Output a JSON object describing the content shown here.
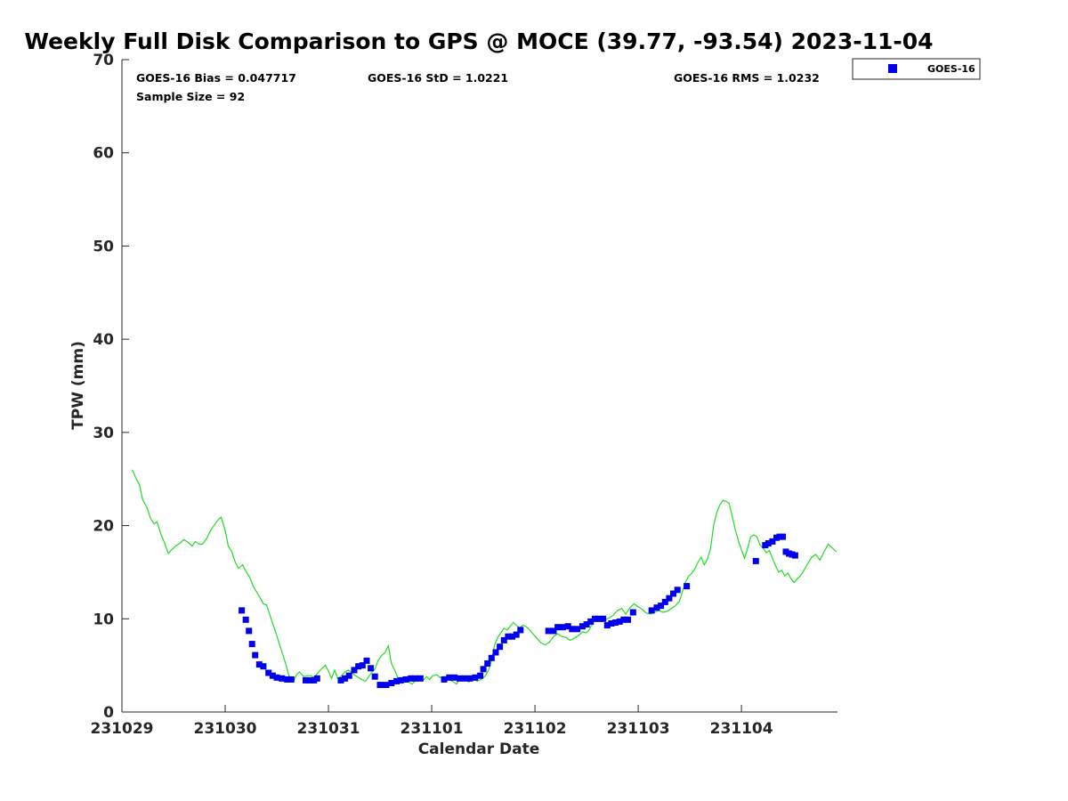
{
  "chart_data": {
    "type": "scatter",
    "title": "Weekly Full Disk Comparison to GPS @ MOCE (39.77, -93.54) 2023-11-04",
    "xlabel": "Calendar Date",
    "ylabel": "TPW (mm)",
    "xlim": [
      0,
      6.93
    ],
    "ylim": [
      0,
      70
    ],
    "x_ticks": [
      {
        "value": 0,
        "label": "231029"
      },
      {
        "value": 1,
        "label": "231030"
      },
      {
        "value": 2,
        "label": "231031"
      },
      {
        "value": 3,
        "label": "231101"
      },
      {
        "value": 4,
        "label": "231102"
      },
      {
        "value": 5,
        "label": "231103"
      },
      {
        "value": 6,
        "label": "231104"
      }
    ],
    "y_ticks": [
      0,
      10,
      20,
      30,
      40,
      50,
      60,
      70
    ],
    "stats": {
      "bias": "GOES-16 Bias = 0.047717",
      "std": "GOES-16 StD = 1.0221",
      "rms": "GOES-16 RMS = 1.0232",
      "sample": "Sample Size = 92"
    },
    "legend": [
      {
        "name": "GOES-16",
        "color": "#0000ee",
        "marker": "square"
      }
    ],
    "series": [
      {
        "name": "GPS",
        "kind": "line",
        "color": "#22dd22",
        "points": [
          [
            0.1,
            26.0
          ],
          [
            0.14,
            25.0
          ],
          [
            0.17,
            24.4
          ],
          [
            0.2,
            22.8
          ],
          [
            0.24,
            22.0
          ],
          [
            0.28,
            20.7
          ],
          [
            0.31,
            20.2
          ],
          [
            0.34,
            20.4
          ],
          [
            0.38,
            19.0
          ],
          [
            0.41,
            18.2
          ],
          [
            0.45,
            17.0
          ],
          [
            0.48,
            17.4
          ],
          [
            0.52,
            17.8
          ],
          [
            0.56,
            18.1
          ],
          [
            0.6,
            18.5
          ],
          [
            0.64,
            18.2
          ],
          [
            0.68,
            17.8
          ],
          [
            0.71,
            18.3
          ],
          [
            0.75,
            18.0
          ],
          [
            0.78,
            18.0
          ],
          [
            0.82,
            18.6
          ],
          [
            0.86,
            19.5
          ],
          [
            0.89,
            20.0
          ],
          [
            0.93,
            20.6
          ],
          [
            0.96,
            20.9
          ],
          [
            1.0,
            19.5
          ],
          [
            1.03,
            17.8
          ],
          [
            1.06,
            17.3
          ],
          [
            1.1,
            16.0
          ],
          [
            1.13,
            15.4
          ],
          [
            1.17,
            15.8
          ],
          [
            1.2,
            15.1
          ],
          [
            1.24,
            14.4
          ],
          [
            1.27,
            13.5
          ],
          [
            1.31,
            12.8
          ],
          [
            1.34,
            12.2
          ],
          [
            1.37,
            11.6
          ],
          [
            1.4,
            11.5
          ],
          [
            1.43,
            10.5
          ],
          [
            1.46,
            9.5
          ],
          [
            1.5,
            8.2
          ],
          [
            1.53,
            7.1
          ],
          [
            1.56,
            6.1
          ],
          [
            1.59,
            5.0
          ],
          [
            1.62,
            3.8
          ],
          [
            1.66,
            3.3
          ],
          [
            1.69,
            4.0
          ],
          [
            1.72,
            4.3
          ],
          [
            1.76,
            3.8
          ],
          [
            1.8,
            3.9
          ],
          [
            1.83,
            3.9
          ],
          [
            1.86,
            3.7
          ],
          [
            1.9,
            4.2
          ],
          [
            1.93,
            4.6
          ],
          [
            1.97,
            5.0
          ],
          [
            2.0,
            4.4
          ],
          [
            2.03,
            3.6
          ],
          [
            2.06,
            4.5
          ],
          [
            2.09,
            3.6
          ],
          [
            2.12,
            3.8
          ],
          [
            2.16,
            4.3
          ],
          [
            2.19,
            4.5
          ],
          [
            2.22,
            4.3
          ],
          [
            2.25,
            4.0
          ],
          [
            2.29,
            3.7
          ],
          [
            2.32,
            3.5
          ],
          [
            2.36,
            3.3
          ],
          [
            2.39,
            3.8
          ],
          [
            2.42,
            4.3
          ],
          [
            2.45,
            4.6
          ],
          [
            2.48,
            5.5
          ],
          [
            2.51,
            6.0
          ],
          [
            2.55,
            6.4
          ],
          [
            2.58,
            7.1
          ],
          [
            2.61,
            5.2
          ],
          [
            2.65,
            4.3
          ],
          [
            2.68,
            3.4
          ],
          [
            2.71,
            3.2
          ],
          [
            2.75,
            3.3
          ],
          [
            2.78,
            3.2
          ],
          [
            2.81,
            3.0
          ],
          [
            2.85,
            3.4
          ],
          [
            2.88,
            3.6
          ],
          [
            2.91,
            3.3
          ],
          [
            2.95,
            3.8
          ],
          [
            2.98,
            3.5
          ],
          [
            3.01,
            3.9
          ],
          [
            3.05,
            4.0
          ],
          [
            3.08,
            3.7
          ],
          [
            3.12,
            3.8
          ],
          [
            3.16,
            3.5
          ],
          [
            3.2,
            3.3
          ],
          [
            3.24,
            3.0
          ],
          [
            3.28,
            3.6
          ],
          [
            3.32,
            3.7
          ],
          [
            3.36,
            3.2
          ],
          [
            3.4,
            3.7
          ],
          [
            3.44,
            3.3
          ],
          [
            3.48,
            3.5
          ],
          [
            3.52,
            3.9
          ],
          [
            3.55,
            4.5
          ],
          [
            3.58,
            5.5
          ],
          [
            3.61,
            7.2
          ],
          [
            3.64,
            8.0
          ],
          [
            3.67,
            8.5
          ],
          [
            3.7,
            9.0
          ],
          [
            3.73,
            8.8
          ],
          [
            3.76,
            9.2
          ],
          [
            3.79,
            9.6
          ],
          [
            3.82,
            9.3
          ],
          [
            3.85,
            9.0
          ],
          [
            3.88,
            9.3
          ],
          [
            3.91,
            9.2
          ],
          [
            3.94,
            8.9
          ],
          [
            3.98,
            8.4
          ],
          [
            4.02,
            7.9
          ],
          [
            4.06,
            7.4
          ],
          [
            4.1,
            7.2
          ],
          [
            4.14,
            7.5
          ],
          [
            4.18,
            8.1
          ],
          [
            4.22,
            8.4
          ],
          [
            4.26,
            8.1
          ],
          [
            4.3,
            8.0
          ],
          [
            4.34,
            7.7
          ],
          [
            4.38,
            7.9
          ],
          [
            4.42,
            8.2
          ],
          [
            4.46,
            8.6
          ],
          [
            4.5,
            8.5
          ],
          [
            4.53,
            8.9
          ],
          [
            4.56,
            9.6
          ],
          [
            4.6,
            9.9
          ],
          [
            4.64,
            10.1
          ],
          [
            4.68,
            9.9
          ],
          [
            4.72,
            10.1
          ],
          [
            4.76,
            10.4
          ],
          [
            4.8,
            10.9
          ],
          [
            4.84,
            11.1
          ],
          [
            4.88,
            10.5
          ],
          [
            4.92,
            11.2
          ],
          [
            4.96,
            11.6
          ],
          [
            5.0,
            11.3
          ],
          [
            5.04,
            11.0
          ],
          [
            5.08,
            10.6
          ],
          [
            5.12,
            10.5
          ],
          [
            5.16,
            10.7
          ],
          [
            5.2,
            10.9
          ],
          [
            5.24,
            10.7
          ],
          [
            5.28,
            10.8
          ],
          [
            5.32,
            11.1
          ],
          [
            5.36,
            11.4
          ],
          [
            5.4,
            11.9
          ],
          [
            5.43,
            13.0
          ],
          [
            5.46,
            14.0
          ],
          [
            5.49,
            14.6
          ],
          [
            5.52,
            14.9
          ],
          [
            5.55,
            15.4
          ],
          [
            5.58,
            16.1
          ],
          [
            5.61,
            16.6
          ],
          [
            5.64,
            15.8
          ],
          [
            5.67,
            16.4
          ],
          [
            5.7,
            17.5
          ],
          [
            5.73,
            20.0
          ],
          [
            5.76,
            21.4
          ],
          [
            5.79,
            22.2
          ],
          [
            5.82,
            22.7
          ],
          [
            5.85,
            22.6
          ],
          [
            5.88,
            22.4
          ],
          [
            5.91,
            21.0
          ],
          [
            5.94,
            19.6
          ],
          [
            5.97,
            18.4
          ],
          [
            6.0,
            17.4
          ],
          [
            6.03,
            16.5
          ],
          [
            6.06,
            17.6
          ],
          [
            6.09,
            18.8
          ],
          [
            6.12,
            19.0
          ],
          [
            6.15,
            18.8
          ],
          [
            6.18,
            17.9
          ],
          [
            6.21,
            17.6
          ],
          [
            6.24,
            17.1
          ],
          [
            6.27,
            17.3
          ],
          [
            6.3,
            16.5
          ],
          [
            6.33,
            15.7
          ],
          [
            6.36,
            15.0
          ],
          [
            6.39,
            15.2
          ],
          [
            6.42,
            14.6
          ],
          [
            6.45,
            14.9
          ],
          [
            6.48,
            14.3
          ],
          [
            6.51,
            13.9
          ],
          [
            6.54,
            14.3
          ],
          [
            6.57,
            14.6
          ],
          [
            6.6,
            15.1
          ],
          [
            6.64,
            15.9
          ],
          [
            6.68,
            16.6
          ],
          [
            6.72,
            16.9
          ],
          [
            6.76,
            16.3
          ],
          [
            6.8,
            17.2
          ],
          [
            6.84,
            18.0
          ],
          [
            6.88,
            17.6
          ],
          [
            6.92,
            17.2
          ]
        ]
      },
      {
        "name": "GOES-16",
        "kind": "markers",
        "color": "#0000ee",
        "points": [
          [
            1.16,
            10.9
          ],
          [
            1.2,
            9.9
          ],
          [
            1.23,
            8.7
          ],
          [
            1.26,
            7.3
          ],
          [
            1.29,
            6.1
          ],
          [
            1.33,
            5.1
          ],
          [
            1.37,
            4.9
          ],
          [
            1.42,
            4.2
          ],
          [
            1.46,
            3.9
          ],
          [
            1.5,
            3.7
          ],
          [
            1.55,
            3.6
          ],
          [
            1.6,
            3.5
          ],
          [
            1.64,
            3.5
          ],
          [
            1.78,
            3.4
          ],
          [
            1.82,
            3.4
          ],
          [
            1.86,
            3.4
          ],
          [
            1.89,
            3.6
          ],
          [
            2.12,
            3.4
          ],
          [
            2.16,
            3.6
          ],
          [
            2.2,
            3.9
          ],
          [
            2.25,
            4.5
          ],
          [
            2.29,
            4.9
          ],
          [
            2.33,
            5.0
          ],
          [
            2.37,
            5.5
          ],
          [
            2.41,
            4.7
          ],
          [
            2.45,
            3.8
          ],
          [
            2.5,
            2.9
          ],
          [
            2.56,
            2.9
          ],
          [
            2.61,
            3.1
          ],
          [
            2.66,
            3.3
          ],
          [
            2.7,
            3.4
          ],
          [
            2.75,
            3.5
          ],
          [
            2.8,
            3.6
          ],
          [
            2.84,
            3.6
          ],
          [
            2.89,
            3.6
          ],
          [
            3.12,
            3.5
          ],
          [
            3.17,
            3.7
          ],
          [
            3.22,
            3.7
          ],
          [
            3.27,
            3.6
          ],
          [
            3.32,
            3.6
          ],
          [
            3.37,
            3.6
          ],
          [
            3.42,
            3.7
          ],
          [
            3.47,
            3.9
          ],
          [
            3.5,
            4.6
          ],
          [
            3.54,
            5.2
          ],
          [
            3.58,
            5.8
          ],
          [
            3.62,
            6.4
          ],
          [
            3.66,
            7.0
          ],
          [
            3.7,
            7.7
          ],
          [
            3.74,
            8.1
          ],
          [
            3.78,
            8.1
          ],
          [
            3.82,
            8.3
          ],
          [
            3.86,
            8.8
          ],
          [
            4.13,
            8.7
          ],
          [
            4.18,
            8.7
          ],
          [
            4.22,
            9.1
          ],
          [
            4.27,
            9.1
          ],
          [
            4.32,
            9.2
          ],
          [
            4.36,
            8.9
          ],
          [
            4.41,
            8.9
          ],
          [
            4.46,
            9.2
          ],
          [
            4.5,
            9.4
          ],
          [
            4.54,
            9.7
          ],
          [
            4.58,
            10.0
          ],
          [
            4.62,
            10.0
          ],
          [
            4.66,
            10.0
          ],
          [
            4.7,
            9.3
          ],
          [
            4.74,
            9.5
          ],
          [
            4.78,
            9.6
          ],
          [
            4.82,
            9.7
          ],
          [
            4.86,
            9.9
          ],
          [
            4.9,
            9.9
          ],
          [
            4.95,
            10.7
          ],
          [
            5.13,
            10.9
          ],
          [
            5.18,
            11.2
          ],
          [
            5.22,
            11.4
          ],
          [
            5.26,
            11.8
          ],
          [
            5.3,
            12.2
          ],
          [
            5.34,
            12.7
          ],
          [
            5.38,
            13.1
          ],
          [
            5.47,
            13.5
          ],
          [
            6.14,
            16.2
          ],
          [
            6.23,
            17.9
          ],
          [
            6.26,
            18.1
          ],
          [
            6.3,
            18.3
          ],
          [
            6.34,
            18.7
          ],
          [
            6.37,
            18.8
          ],
          [
            6.4,
            18.8
          ],
          [
            6.43,
            17.2
          ],
          [
            6.46,
            17.0
          ],
          [
            6.49,
            16.9
          ],
          [
            6.52,
            16.8
          ]
        ]
      }
    ]
  }
}
